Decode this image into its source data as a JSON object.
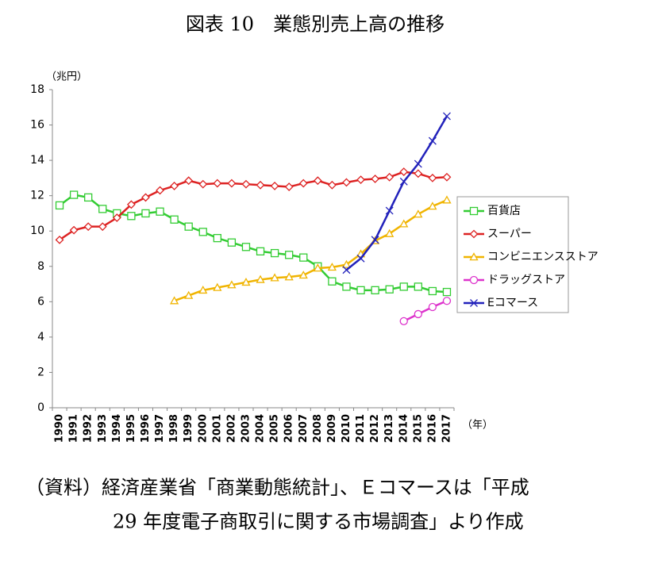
{
  "chart_data": {
    "type": "line",
    "title": "図表 10　業態別売上高の推移",
    "y_label": "（兆円）",
    "x_label": "（年）",
    "source": [
      "（資料）経済産業省「商業動態統計」、Ｅコマースは「平成",
      "29 年度電子商取引に関する市場調査」より作成"
    ],
    "categories": [
      "1990",
      "1991",
      "1992",
      "1993",
      "1994",
      "1995",
      "1996",
      "1997",
      "1998",
      "1999",
      "2000",
      "2001",
      "2002",
      "2003",
      "2004",
      "2005",
      "2006",
      "2007",
      "2008",
      "2009",
      "2010",
      "2011",
      "2012",
      "2013",
      "2014",
      "2015",
      "2016",
      "2017"
    ],
    "ylim": [
      0,
      18
    ],
    "yticks": [
      0,
      2,
      4,
      6,
      8,
      10,
      12,
      14,
      16,
      18
    ],
    "grid": false,
    "legend": "right",
    "series": [
      {
        "name": "百貨店",
        "color": "#33cc33",
        "marker": "square",
        "values": [
          11.45,
          12.05,
          11.9,
          11.25,
          11.0,
          10.85,
          11.0,
          11.1,
          10.65,
          10.25,
          9.95,
          9.6,
          9.35,
          9.1,
          8.85,
          8.75,
          8.65,
          8.5,
          8.0,
          7.15,
          6.85,
          6.65,
          6.65,
          6.7,
          6.85,
          6.85,
          6.6,
          6.55
        ]
      },
      {
        "name": "スーパー",
        "color": "#dd2222",
        "marker": "diamond",
        "values": [
          9.5,
          10.05,
          10.25,
          10.25,
          10.75,
          11.5,
          11.9,
          12.3,
          12.55,
          12.85,
          12.65,
          12.7,
          12.7,
          12.65,
          12.6,
          12.55,
          12.5,
          12.7,
          12.85,
          12.6,
          12.75,
          12.9,
          12.95,
          13.05,
          13.35,
          13.25,
          13.0,
          13.05
        ]
      },
      {
        "name": "コンビニエンスストア",
        "color": "#f0b400",
        "marker": "triangle",
        "values": [
          null,
          null,
          null,
          null,
          null,
          null,
          null,
          null,
          6.05,
          6.35,
          6.65,
          6.8,
          6.95,
          7.1,
          7.25,
          7.35,
          7.4,
          7.5,
          7.9,
          7.95,
          8.1,
          8.7,
          9.45,
          9.85,
          10.4,
          10.95,
          11.4,
          11.75
        ]
      },
      {
        "name": "ドラッグストア",
        "color": "#dd33cc",
        "marker": "circle",
        "values": [
          null,
          null,
          null,
          null,
          null,
          null,
          null,
          null,
          null,
          null,
          null,
          null,
          null,
          null,
          null,
          null,
          null,
          null,
          null,
          null,
          null,
          null,
          null,
          null,
          4.9,
          5.3,
          5.7,
          6.05
        ]
      },
      {
        "name": "Eコマース",
        "color": "#2222bb",
        "marker": "x",
        "values": [
          null,
          null,
          null,
          null,
          null,
          null,
          null,
          null,
          null,
          null,
          null,
          null,
          null,
          null,
          null,
          null,
          null,
          null,
          null,
          null,
          7.8,
          8.45,
          9.5,
          11.15,
          12.8,
          13.8,
          15.1,
          16.5
        ]
      }
    ]
  }
}
